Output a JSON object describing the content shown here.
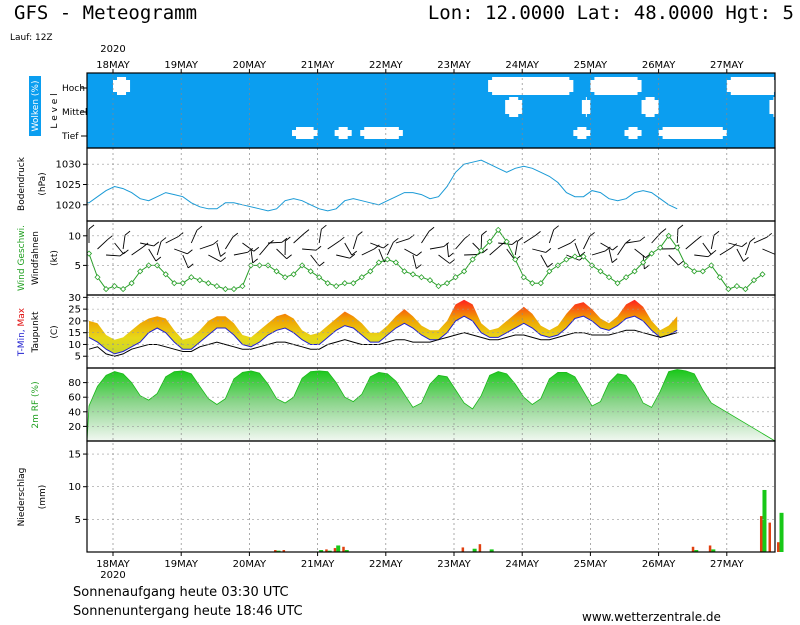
{
  "header": {
    "title": "GFS - Meteogramm",
    "lon_label": "Lon:",
    "lon": "12.0000",
    "lat_label": "Lat:",
    "lat": "48.0000",
    "hgt_label": "Hgt:",
    "hgt": "5",
    "lauf": "Lauf: 12Z"
  },
  "footer": {
    "sunrise": "Sonnenaufgang heute 03:30 UTC",
    "sunset": "Sonnenuntergang heute 18:46 UTC",
    "url": "www.wetterzentrale.de"
  },
  "colors": {
    "cloud_bg": "#0b9ef0",
    "pressure_line": "#1a9ad6",
    "wind_line": "#2aa02a",
    "tdew_line": "#000000",
    "tmin_line": "#2020d0",
    "tmax_top": "#ff2020",
    "tmax_mid": "#f08a00",
    "tmax_low": "#e8e020",
    "rh_fill": "#1ec81e",
    "rain_green": "#18c818",
    "rain_red": "#e04010"
  },
  "chart_data": {
    "type": "meteogram",
    "year": "2020",
    "days": [
      "18MAY",
      "19MAY",
      "20MAY",
      "21MAY",
      "22MAY",
      "23MAY",
      "24MAY",
      "25MAY",
      "26MAY",
      "27MAY"
    ],
    "time_step_hours": 3,
    "start": "18MAY 00 UTC",
    "panels": [
      {
        "key": "clouds",
        "ylabel": "Wolken (%)",
        "level_title": "L e v e l",
        "levels": [
          "Hoch",
          "Mittel",
          "Tief"
        ],
        "high_clear_runs": [
          [
            0,
            2
          ],
          [
            44,
            54
          ],
          [
            56,
            62
          ],
          [
            72,
            78
          ],
          [
            80,
            86
          ],
          [
            90,
            94
          ]
        ],
        "mid_clear_runs": [
          [
            46,
            48
          ],
          [
            55,
            56
          ],
          [
            62,
            64
          ],
          [
            77,
            79
          ],
          [
            86,
            88
          ],
          [
            89,
            92
          ]
        ],
        "low_clear_runs": [
          [
            21,
            24
          ],
          [
            26,
            28
          ],
          [
            29,
            34
          ],
          [
            54,
            56
          ],
          [
            60,
            62
          ],
          [
            64,
            72
          ],
          [
            85,
            88
          ],
          [
            89,
            92
          ]
        ]
      },
      {
        "key": "pressure",
        "ylabel": "Bodendruck",
        "unit": "(hPa)",
        "ylim": [
          1016,
          1034
        ],
        "ticks": [
          1020,
          1025,
          1030
        ],
        "values": [
          1020.5,
          1022,
          1023.5,
          1024.5,
          1024,
          1023,
          1021.5,
          1021,
          1022,
          1023,
          1022.5,
          1022,
          1020.5,
          1019.5,
          1019,
          1019,
          1020.5,
          1020.5,
          1020,
          1019.5,
          1019,
          1018.5,
          1019,
          1021,
          1021.5,
          1021,
          1020,
          1019,
          1018.5,
          1019,
          1021,
          1021.5,
          1021,
          1020.5,
          1020,
          1021,
          1022,
          1023,
          1023,
          1022.5,
          1021.5,
          1022,
          1024.5,
          1028,
          1030,
          1030.5,
          1031,
          1030,
          1029,
          1028,
          1029,
          1029.5,
          1029,
          1028,
          1027,
          1025.5,
          1023,
          1022,
          1022,
          1023.5,
          1023,
          1021.5,
          1021,
          1021.5,
          1023,
          1023.5,
          1023,
          1021.5,
          1020,
          1019
        ]
      },
      {
        "key": "wind",
        "ylabel": "Wind Geschwi.",
        "ylabel2": "Windfahnen",
        "unit": "(kt)",
        "ylim": [
          0,
          12.5
        ],
        "ticks": [
          5,
          10
        ],
        "values": [
          7,
          3,
          1,
          1.5,
          1,
          2,
          4,
          5,
          5,
          3.5,
          2,
          2,
          3,
          2.5,
          2,
          1.5,
          1,
          1,
          1.5,
          5,
          5,
          5,
          4,
          3,
          3.5,
          5,
          4,
          3,
          2,
          1.5,
          2,
          2,
          3,
          4,
          5.5,
          6,
          5.5,
          4,
          3.5,
          3,
          2.5,
          1.5,
          2,
          3,
          4,
          6,
          7.5,
          9,
          11,
          9,
          6,
          3,
          2,
          2,
          4,
          5,
          6,
          6.5,
          6.5,
          5,
          4,
          3,
          2,
          3,
          4,
          5.5,
          7,
          8,
          10,
          8,
          5,
          4,
          4,
          5,
          3,
          1,
          1.5,
          1,
          2.5,
          3.5
        ]
      },
      {
        "key": "temperature",
        "ylabel": "T-Min, Max",
        "ylabel2": "Taupunkt",
        "unit": "(C)",
        "ylim": [
          0,
          31
        ],
        "ticks": [
          5,
          10,
          15,
          20,
          25,
          30
        ],
        "tmin": [
          13,
          11,
          8,
          6,
          7,
          9,
          11,
          15,
          17,
          15,
          11,
          8,
          8,
          11,
          14,
          17,
          17,
          14,
          10,
          9,
          11,
          14,
          16,
          17,
          15,
          12,
          10,
          10,
          13,
          16,
          18,
          17,
          14,
          11,
          11,
          14,
          17,
          19,
          17,
          14,
          12,
          12,
          15,
          20,
          22,
          20,
          15,
          13,
          13,
          15,
          17,
          19,
          17,
          14,
          13,
          14,
          17,
          21,
          22,
          20,
          17,
          16,
          18,
          21,
          22,
          20,
          16,
          13,
          14,
          16
        ],
        "tmax": [
          20,
          19,
          14,
          12,
          13,
          16,
          19,
          21,
          22,
          21,
          16,
          12,
          13,
          16,
          20,
          22,
          22,
          19,
          14,
          13,
          16,
          19,
          22,
          23,
          21,
          16,
          14,
          15,
          18,
          21,
          24,
          22,
          19,
          15,
          15,
          18,
          22,
          25,
          22,
          18,
          16,
          16,
          20,
          27,
          29,
          27,
          19,
          16,
          17,
          20,
          23,
          26,
          23,
          18,
          16,
          18,
          23,
          27,
          28,
          25,
          21,
          19,
          22,
          27,
          29,
          26,
          20,
          16,
          18,
          22
        ],
        "tdew": [
          8,
          9,
          6,
          5,
          6,
          8,
          9,
          10,
          10,
          9,
          8,
          7,
          7,
          9,
          10,
          11,
          10,
          9,
          8,
          8,
          9,
          10,
          11,
          11,
          10,
          9,
          8,
          8,
          10,
          11,
          12,
          11,
          10,
          10,
          10,
          11,
          12,
          12,
          11,
          11,
          11,
          12,
          13,
          14,
          15,
          14,
          13,
          12,
          12,
          13,
          14,
          14,
          13,
          12,
          12,
          13,
          14,
          15,
          15,
          14,
          14,
          14,
          15,
          16,
          16,
          15,
          14,
          13,
          14,
          15
        ]
      },
      {
        "key": "humidity",
        "ylabel": "2m RF (%)",
        "ylim": [
          0,
          100
        ],
        "ticks": [
          20,
          40,
          60,
          80
        ],
        "values": [
          48,
          75,
          90,
          95,
          92,
          80,
          62,
          56,
          65,
          88,
          95,
          96,
          92,
          75,
          58,
          50,
          58,
          85,
          94,
          96,
          93,
          78,
          58,
          52,
          60,
          86,
          95,
          96,
          95,
          80,
          60,
          54,
          64,
          88,
          94,
          92,
          82,
          64,
          46,
          52,
          78,
          90,
          88,
          70,
          52,
          44,
          62,
          90,
          95,
          92,
          78,
          60,
          50,
          58,
          85,
          94,
          94,
          88,
          68,
          48,
          54,
          80,
          92,
          90,
          76,
          52,
          46,
          68,
          95,
          98,
          96,
          92,
          70,
          52
        ]
      },
      {
        "key": "precipitation",
        "ylabel": "Niederschlag",
        "unit": "(mm)",
        "ylim": [
          0,
          17
        ],
        "ticks": [
          5,
          10,
          15
        ],
        "green_bars": [
          [
            22,
            0.2
          ],
          [
            27,
            0.3
          ],
          [
            28,
            0.2
          ],
          [
            29,
            1.0
          ],
          [
            30,
            0.3
          ],
          [
            45,
            0.5
          ],
          [
            47,
            0.4
          ],
          [
            71,
            0.3
          ],
          [
            73,
            0.4
          ],
          [
            79,
            9.5
          ],
          [
            81,
            6.0
          ]
        ],
        "red_bars": [
          [
            22,
            0.3
          ],
          [
            23,
            0.3
          ],
          [
            28,
            0.4
          ],
          [
            29,
            0.6
          ],
          [
            30,
            0.8
          ],
          [
            44,
            0.7
          ],
          [
            46,
            1.2
          ],
          [
            71,
            0.8
          ],
          [
            73,
            1.0
          ],
          [
            79,
            5.5
          ],
          [
            80,
            4.5
          ],
          [
            81,
            1.5
          ]
        ]
      }
    ]
  }
}
